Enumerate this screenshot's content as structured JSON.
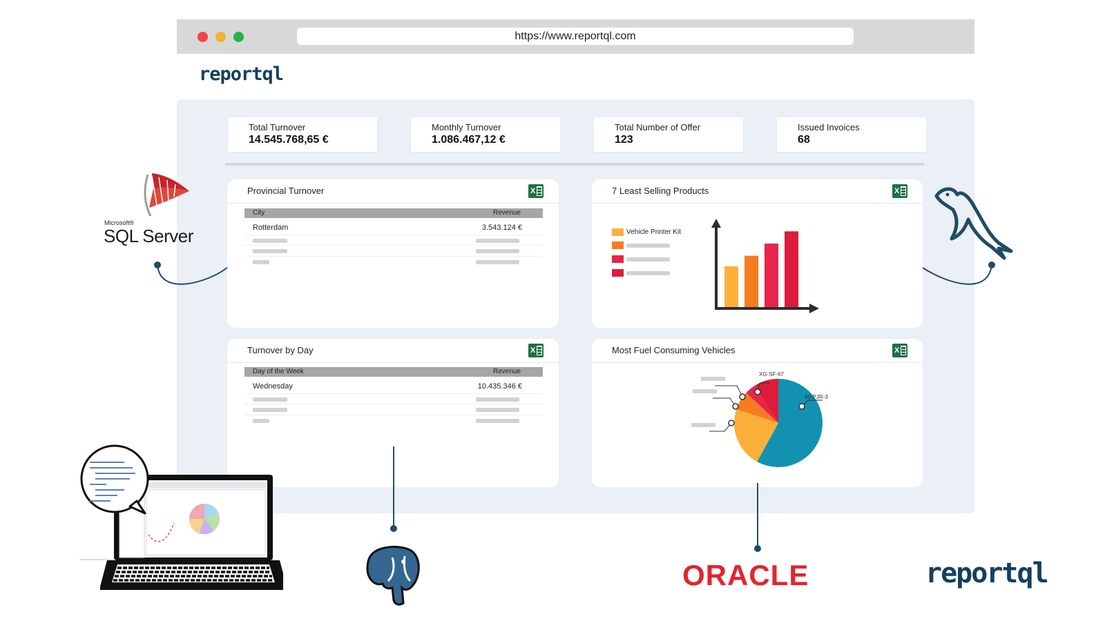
{
  "browser": {
    "url": "https://www.reportql.com",
    "dots": [
      "#ee4444",
      "#f3b229",
      "#27b34b"
    ]
  },
  "brand": {
    "name": "reportql",
    "color": "#14405f"
  },
  "kpis": [
    {
      "label": "Total Turnover",
      "value": "14.545.768,65 €"
    },
    {
      "label": "Monthly Turnover",
      "value": "1.086.467,12 €"
    },
    {
      "label": "Total Number of Offer",
      "value": "123"
    },
    {
      "label": "Issued Invoices",
      "value": "68"
    }
  ],
  "cards": {
    "provincial": {
      "title": "Provincial Turnover",
      "columns": [
        "City",
        "Revenue"
      ],
      "rows": [
        {
          "city": "Rotterdam",
          "revenue": "3.543.124 €"
        }
      ]
    },
    "least_selling": {
      "title": "7 Least Selling Products",
      "legend_first": "Vehicle Printer Kit"
    },
    "turnover_day": {
      "title": "Turnover by Day",
      "columns": [
        "Day of the Week",
        "Revenue"
      ],
      "rows": [
        {
          "day": "Wednesday",
          "revenue": "10.435.346 €"
        }
      ]
    },
    "fuel": {
      "title": "Most Fuel Consuming Vehicles"
    }
  },
  "chart_data": [
    {
      "type": "bar",
      "title": "7 Least Selling Products",
      "series": [
        {
          "name": "Vehicle Printer Kit"
        }
      ],
      "values": [
        0.5,
        0.63,
        0.78,
        0.93
      ],
      "colors": [
        "#fbb03b",
        "#f57c1f",
        "#e8254b",
        "#dc1c3a"
      ]
    },
    {
      "type": "pie",
      "title": "Most Fuel Consuming Vehicles",
      "labels": [
        "60-PJR-3",
        "",
        "",
        "",
        "XG-SF-67"
      ],
      "values": [
        0.58,
        0.22,
        0.07,
        0.04,
        0.09
      ],
      "colors": [
        "#1292b0",
        "#fbb03b",
        "#f57c1f",
        "#e8254b",
        "#dc1c3a"
      ]
    }
  ],
  "logos": {
    "sql_server_small": "Microsoft®",
    "sql_server": "SQL Server",
    "oracle": "ORACLE",
    "oracle_color": "#e1262c",
    "bottom_brand": "reportql"
  }
}
